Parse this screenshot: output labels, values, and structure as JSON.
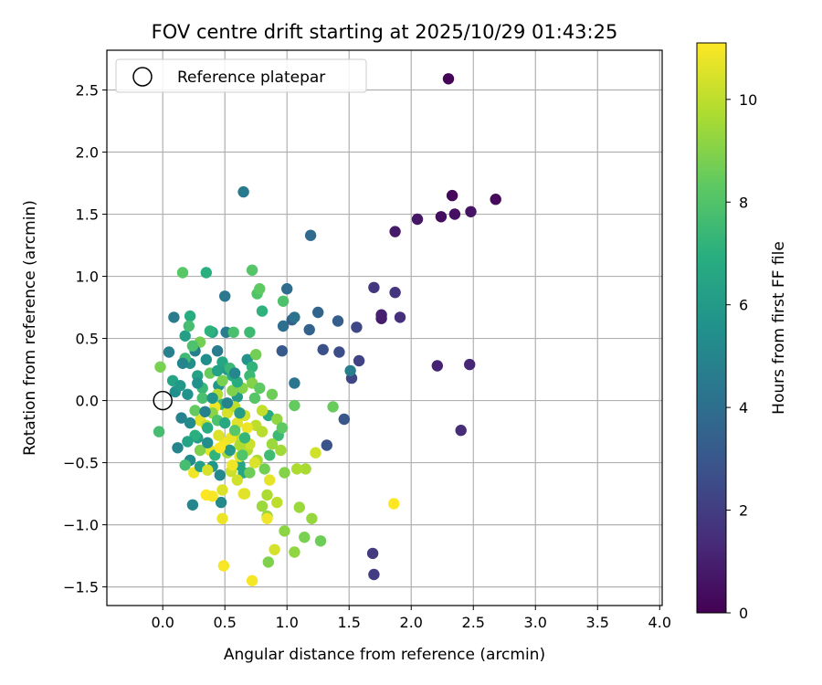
{
  "chart_data": {
    "type": "scatter",
    "title": "FOV centre drift starting at 2025/10/29 01:43:25",
    "xlabel": "Angular distance from reference (arcmin)",
    "ylabel": "Rotation from reference (arcmin)",
    "xlim": [
      -0.45,
      4.02
    ],
    "ylim": [
      -1.65,
      2.82
    ],
    "xticks": [
      0.0,
      0.5,
      1.0,
      1.5,
      2.0,
      2.5,
      3.0,
      3.5,
      4.0
    ],
    "xtick_labels": [
      "0.0",
      "0.5",
      "1.0",
      "1.5",
      "2.0",
      "2.5",
      "3.0",
      "3.5",
      "4.0"
    ],
    "yticks": [
      -1.5,
      -1.0,
      -0.5,
      0.0,
      0.5,
      1.0,
      1.5,
      2.0,
      2.5
    ],
    "ytick_labels": [
      "−1.5",
      "−1.0",
      "−0.5",
      "0.0",
      "0.5",
      "1.0",
      "1.5",
      "2.0",
      "2.5"
    ],
    "grid": true,
    "legend": {
      "position": "upper-left",
      "entries": [
        {
          "label": "Reference platepar",
          "marker": "open-circle"
        }
      ]
    },
    "reference_point": {
      "x": 0.0,
      "y": 0.0
    },
    "colorbar": {
      "label": "Hours from first FF file",
      "colormap": "viridis",
      "range": [
        0,
        11.1
      ],
      "ticks": [
        0,
        2,
        4,
        6,
        8,
        10
      ],
      "tick_labels": [
        "0",
        "2",
        "4",
        "6",
        "8",
        "10"
      ]
    },
    "series": [
      {
        "name": "FOV centre drift",
        "points": [
          {
            "x": 2.3,
            "y": 2.59,
            "h": 0.1
          },
          {
            "x": 2.33,
            "y": 1.65,
            "h": 0.2
          },
          {
            "x": 2.68,
            "y": 1.62,
            "h": 0.3
          },
          {
            "x": 2.24,
            "y": 1.48,
            "h": 0.4
          },
          {
            "x": 2.35,
            "y": 1.5,
            "h": 0.5
          },
          {
            "x": 2.48,
            "y": 1.52,
            "h": 0.6
          },
          {
            "x": 2.05,
            "y": 1.46,
            "h": 0.7
          },
          {
            "x": 1.87,
            "y": 1.36,
            "h": 0.8
          },
          {
            "x": 1.76,
            "y": 0.66,
            "h": 0.9
          },
          {
            "x": 1.76,
            "y": 0.69,
            "h": 1.0
          },
          {
            "x": 2.21,
            "y": 0.28,
            "h": 1.1
          },
          {
            "x": 2.47,
            "y": 0.29,
            "h": 1.2
          },
          {
            "x": 2.4,
            "y": -0.24,
            "h": 1.4
          },
          {
            "x": 1.91,
            "y": 0.67,
            "h": 1.5
          },
          {
            "x": 1.87,
            "y": 0.87,
            "h": 1.7
          },
          {
            "x": 1.7,
            "y": 0.91,
            "h": 1.8
          },
          {
            "x": 1.69,
            "y": -1.23,
            "h": 1.9
          },
          {
            "x": 1.7,
            "y": -1.4,
            "h": 2.0
          },
          {
            "x": 1.58,
            "y": 0.32,
            "h": 2.2
          },
          {
            "x": 1.52,
            "y": 0.18,
            "h": 2.3
          },
          {
            "x": 1.56,
            "y": 0.59,
            "h": 2.4
          },
          {
            "x": 1.42,
            "y": 0.39,
            "h": 2.6
          },
          {
            "x": 1.29,
            "y": 0.41,
            "h": 2.7
          },
          {
            "x": 1.32,
            "y": -0.36,
            "h": 2.8
          },
          {
            "x": 1.46,
            "y": -0.15,
            "h": 3.0
          },
          {
            "x": 0.96,
            "y": 0.4,
            "h": 3.1
          },
          {
            "x": 1.41,
            "y": 0.64,
            "h": 3.3
          },
          {
            "x": 1.04,
            "y": 0.65,
            "h": 3.4
          },
          {
            "x": 1.18,
            "y": 0.57,
            "h": 3.5
          },
          {
            "x": 1.25,
            "y": 0.71,
            "h": 3.6
          },
          {
            "x": 1.19,
            "y": 1.33,
            "h": 3.8
          },
          {
            "x": 1.0,
            "y": 0.9,
            "h": 3.9
          },
          {
            "x": 0.97,
            "y": 0.6,
            "h": 4.0
          },
          {
            "x": 1.06,
            "y": 0.67,
            "h": 4.2
          },
          {
            "x": 1.06,
            "y": 0.14,
            "h": 4.3
          },
          {
            "x": 0.5,
            "y": 0.84,
            "h": 4.4
          },
          {
            "x": 0.65,
            "y": 1.68,
            "h": 4.5
          },
          {
            "x": 0.51,
            "y": 0.55,
            "h": 4.6
          },
          {
            "x": 0.09,
            "y": 0.67,
            "h": 4.6
          },
          {
            "x": 1.51,
            "y": 0.24,
            "h": 4.7
          },
          {
            "x": 0.05,
            "y": 0.39,
            "h": 4.8
          },
          {
            "x": 0.15,
            "y": -0.14,
            "h": 4.9
          },
          {
            "x": 0.12,
            "y": -0.38,
            "h": 5.0
          },
          {
            "x": 0.24,
            "y": -0.84,
            "h": 5.1
          },
          {
            "x": 0.47,
            "y": -0.82,
            "h": 5.2
          },
          {
            "x": 0.22,
            "y": -0.48,
            "h": 5.3
          },
          {
            "x": 0.35,
            "y": 0.33,
            "h": 5.4
          },
          {
            "x": 0.22,
            "y": 0.3,
            "h": 5.5
          },
          {
            "x": 0.1,
            "y": 0.07,
            "h": 5.5
          },
          {
            "x": 0.2,
            "y": 0.05,
            "h": 5.6
          },
          {
            "x": 0.68,
            "y": 0.33,
            "h": 5.7
          },
          {
            "x": 0.4,
            "y": -0.53,
            "h": 5.8
          },
          {
            "x": 0.45,
            "y": 0.12,
            "h": 5.8
          },
          {
            "x": 0.52,
            "y": 0.25,
            "h": 5.9
          },
          {
            "x": 0.6,
            "y": 0.03,
            "h": 6.0
          },
          {
            "x": 0.28,
            "y": -0.3,
            "h": 6.1
          },
          {
            "x": 0.18,
            "y": 0.52,
            "h": 6.2
          },
          {
            "x": 0.28,
            "y": 0.2,
            "h": 6.3
          },
          {
            "x": 0.08,
            "y": 0.16,
            "h": 6.4
          },
          {
            "x": 0.4,
            "y": 0.55,
            "h": 6.5
          },
          {
            "x": 0.62,
            "y": -0.52,
            "h": 6.5
          },
          {
            "x": 0.48,
            "y": 0.31,
            "h": 6.6
          },
          {
            "x": 0.65,
            "y": -0.58,
            "h": 6.6
          },
          {
            "x": 0.85,
            "y": -0.12,
            "h": 6.7
          },
          {
            "x": 0.56,
            "y": 0.2,
            "h": 6.8
          },
          {
            "x": 0.22,
            "y": 0.68,
            "h": 6.9
          },
          {
            "x": 0.35,
            "y": 1.03,
            "h": 7.0
          },
          {
            "x": 0.8,
            "y": 0.72,
            "h": 7.1
          },
          {
            "x": 0.72,
            "y": 0.27,
            "h": 7.2
          },
          {
            "x": 0.48,
            "y": -0.03,
            "h": 7.3
          },
          {
            "x": 0.32,
            "y": 0.1,
            "h": 7.4
          },
          {
            "x": 0.7,
            "y": 0.2,
            "h": 7.5
          },
          {
            "x": 0.93,
            "y": -0.28,
            "h": 7.5
          },
          {
            "x": 0.18,
            "y": 0.34,
            "h": 7.6
          },
          {
            "x": 0.21,
            "y": 0.6,
            "h": 7.7
          },
          {
            "x": -0.03,
            "y": -0.25,
            "h": 7.7
          },
          {
            "x": 0.57,
            "y": 0.55,
            "h": 7.8
          },
          {
            "x": 0.97,
            "y": 0.8,
            "h": 7.9
          },
          {
            "x": 0.76,
            "y": 0.86,
            "h": 8.0
          },
          {
            "x": 0.72,
            "y": 1.05,
            "h": 8.1
          },
          {
            "x": 0.16,
            "y": 1.03,
            "h": 8.2
          },
          {
            "x": 0.78,
            "y": 0.9,
            "h": 8.3
          },
          {
            "x": 1.06,
            "y": -0.04,
            "h": 8.4
          },
          {
            "x": 1.37,
            "y": -0.05,
            "h": 8.5
          },
          {
            "x": 1.27,
            "y": -1.13,
            "h": 8.6
          },
          {
            "x": 0.75,
            "y": 0.37,
            "h": 8.7
          },
          {
            "x": 0.3,
            "y": 0.47,
            "h": 8.7
          },
          {
            "x": -0.02,
            "y": 0.27,
            "h": 8.8
          },
          {
            "x": 1.14,
            "y": -1.1,
            "h": 8.8
          },
          {
            "x": 0.85,
            "y": -1.3,
            "h": 8.9
          },
          {
            "x": 0.72,
            "y": 0.14,
            "h": 9.0
          },
          {
            "x": 0.98,
            "y": -1.05,
            "h": 9.1
          },
          {
            "x": 1.06,
            "y": -1.22,
            "h": 9.2
          },
          {
            "x": 1.2,
            "y": -0.95,
            "h": 9.3
          },
          {
            "x": 0.8,
            "y": -0.85,
            "h": 9.4
          },
          {
            "x": 0.95,
            "y": -0.4,
            "h": 9.5
          },
          {
            "x": 1.15,
            "y": -0.55,
            "h": 9.6
          },
          {
            "x": 1.08,
            "y": -0.55,
            "h": 9.7
          },
          {
            "x": 0.68,
            "y": -0.4,
            "h": 9.8
          },
          {
            "x": 0.58,
            "y": -0.28,
            "h": 9.9
          },
          {
            "x": 0.75,
            "y": -0.2,
            "h": 10.0
          },
          {
            "x": 0.8,
            "y": -0.08,
            "h": 10.1
          },
          {
            "x": 0.55,
            "y": -0.57,
            "h": 10.2
          },
          {
            "x": 1.23,
            "y": -0.42,
            "h": 10.3
          },
          {
            "x": 0.9,
            "y": -1.2,
            "h": 10.4
          },
          {
            "x": 0.48,
            "y": -0.72,
            "h": 10.5
          },
          {
            "x": 0.3,
            "y": -0.16,
            "h": 10.6
          },
          {
            "x": 0.62,
            "y": -0.45,
            "h": 10.7
          },
          {
            "x": 0.48,
            "y": -0.95,
            "h": 10.8
          },
          {
            "x": 0.25,
            "y": -0.58,
            "h": 10.9
          },
          {
            "x": 0.49,
            "y": -1.33,
            "h": 11.0
          },
          {
            "x": 0.72,
            "y": -1.45,
            "h": 11.0
          },
          {
            "x": 1.86,
            "y": -0.83,
            "h": 11.1
          },
          {
            "x": 0.35,
            "y": -0.76,
            "h": 11.1
          },
          {
            "x": 0.4,
            "y": -0.77,
            "h": 11.0
          },
          {
            "x": 0.65,
            "y": -0.75,
            "h": 11.0
          },
          {
            "x": 0.5,
            "y": -0.34,
            "h": 10.9
          },
          {
            "x": 0.42,
            "y": -0.05,
            "h": 10.9
          },
          {
            "x": 0.55,
            "y": -0.3,
            "h": 10.8
          },
          {
            "x": 0.68,
            "y": -0.22,
            "h": 10.8
          },
          {
            "x": 0.38,
            "y": -0.4,
            "h": 10.7
          },
          {
            "x": 0.6,
            "y": -0.18,
            "h": 10.6
          },
          {
            "x": 0.45,
            "y": -0.28,
            "h": 10.5
          },
          {
            "x": 0.52,
            "y": -0.1,
            "h": 10.4
          },
          {
            "x": 0.66,
            "y": -0.12,
            "h": 10.3
          },
          {
            "x": 0.7,
            "y": -0.35,
            "h": 10.2
          },
          {
            "x": 0.35,
            "y": -0.2,
            "h": 10.1
          },
          {
            "x": 0.58,
            "y": -0.05,
            "h": 10.0
          },
          {
            "x": 0.8,
            "y": -0.25,
            "h": 9.9
          },
          {
            "x": 0.44,
            "y": 0.05,
            "h": 9.8
          },
          {
            "x": 0.62,
            "y": -0.36,
            "h": 9.7
          },
          {
            "x": 0.76,
            "y": -0.48,
            "h": 9.6
          },
          {
            "x": 0.52,
            "y": -0.42,
            "h": 9.5
          },
          {
            "x": 0.88,
            "y": -0.35,
            "h": 9.4
          },
          {
            "x": 0.84,
            "y": -0.93,
            "h": 9.3
          },
          {
            "x": 0.92,
            "y": -0.15,
            "h": 9.2
          },
          {
            "x": 0.4,
            "y": -0.1,
            "h": 9.1
          },
          {
            "x": 0.64,
            "y": 0.1,
            "h": 9.0
          },
          {
            "x": 0.3,
            "y": -0.4,
            "h": 8.9
          },
          {
            "x": 0.56,
            "y": 0.08,
            "h": 8.9
          },
          {
            "x": 0.48,
            "y": 0.16,
            "h": 8.8
          },
          {
            "x": 0.82,
            "y": -0.55,
            "h": 8.7
          },
          {
            "x": 0.7,
            "y": -0.58,
            "h": 8.6
          },
          {
            "x": 0.38,
            "y": 0.22,
            "h": 8.5
          },
          {
            "x": 0.26,
            "y": -0.08,
            "h": 8.4
          },
          {
            "x": 0.96,
            "y": -0.22,
            "h": 8.3
          },
          {
            "x": 0.58,
            "y": -0.24,
            "h": 8.2
          },
          {
            "x": 0.74,
            "y": 0.02,
            "h": 8.1
          },
          {
            "x": 0.64,
            "y": -0.44,
            "h": 8.0
          },
          {
            "x": 0.44,
            "y": -0.16,
            "h": 7.9
          },
          {
            "x": 0.32,
            "y": 0.02,
            "h": 7.8
          },
          {
            "x": 0.18,
            "y": -0.52,
            "h": 7.7
          },
          {
            "x": 0.86,
            "y": -0.44,
            "h": 7.6
          },
          {
            "x": 0.54,
            "y": 0.26,
            "h": 7.4
          },
          {
            "x": 0.66,
            "y": -0.3,
            "h": 7.3
          },
          {
            "x": 0.42,
            "y": -0.44,
            "h": 7.2
          },
          {
            "x": 0.26,
            "y": -0.28,
            "h": 7.0
          },
          {
            "x": 0.6,
            "y": 0.15,
            "h": 6.9
          },
          {
            "x": 0.36,
            "y": -0.22,
            "h": 6.8
          },
          {
            "x": 0.5,
            "y": -0.18,
            "h": 6.7
          },
          {
            "x": 0.2,
            "y": -0.33,
            "h": 6.4
          },
          {
            "x": 0.44,
            "y": 0.24,
            "h": 6.3
          },
          {
            "x": 0.3,
            "y": -0.53,
            "h": 6.2
          },
          {
            "x": 0.62,
            "y": -0.1,
            "h": 6.1
          },
          {
            "x": 0.54,
            "y": -0.4,
            "h": 6.0
          },
          {
            "x": 0.14,
            "y": 0.12,
            "h": 5.9
          },
          {
            "x": 0.4,
            "y": 0.02,
            "h": 5.7
          },
          {
            "x": 0.28,
            "y": 0.14,
            "h": 5.6
          },
          {
            "x": 0.36,
            "y": -0.34,
            "h": 5.4
          },
          {
            "x": 0.22,
            "y": -0.18,
            "h": 5.3
          },
          {
            "x": 0.46,
            "y": -0.6,
            "h": 5.2
          },
          {
            "x": 0.58,
            "y": 0.22,
            "h": 5.1
          },
          {
            "x": 0.16,
            "y": 0.3,
            "h": 5.0
          },
          {
            "x": 0.52,
            "y": -0.02,
            "h": 4.9
          },
          {
            "x": 0.34,
            "y": -0.09,
            "h": 4.8
          },
          {
            "x": 0.26,
            "y": 0.4,
            "h": 4.7
          },
          {
            "x": 0.44,
            "y": 0.4,
            "h": 4.6
          },
          {
            "x": 0.38,
            "y": 0.56,
            "h": 7.1
          },
          {
            "x": 0.7,
            "y": 0.55,
            "h": 7.5
          },
          {
            "x": 0.24,
            "y": 0.44,
            "h": 7.9
          },
          {
            "x": 0.78,
            "y": 0.1,
            "h": 8.3
          },
          {
            "x": 0.88,
            "y": 0.05,
            "h": 8.6
          },
          {
            "x": 0.98,
            "y": -0.58,
            "h": 9.0
          },
          {
            "x": 1.1,
            "y": -0.86,
            "h": 9.4
          },
          {
            "x": 0.84,
            "y": -0.76,
            "h": 9.7
          },
          {
            "x": 0.92,
            "y": -0.82,
            "h": 10.0
          },
          {
            "x": 0.6,
            "y": -0.64,
            "h": 10.3
          },
          {
            "x": 0.74,
            "y": -0.5,
            "h": 10.5
          },
          {
            "x": 0.86,
            "y": -0.64,
            "h": 10.7
          },
          {
            "x": 0.56,
            "y": -0.52,
            "h": 10.9
          },
          {
            "x": 0.46,
            "y": -0.38,
            "h": 11.0
          },
          {
            "x": 0.66,
            "y": -0.75,
            "h": 10.6
          },
          {
            "x": 0.36,
            "y": -0.56,
            "h": 10.4
          },
          {
            "x": 0.84,
            "y": -0.95,
            "h": 10.9
          }
        ]
      }
    ]
  }
}
